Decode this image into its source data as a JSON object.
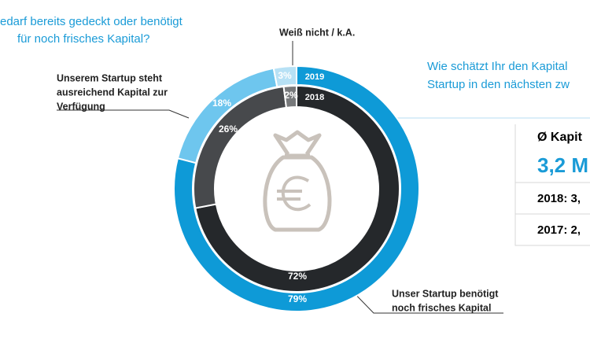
{
  "chart_data": {
    "type": "donut",
    "title": [
      "edarf bereits gedeckt oder benötigt",
      "für noch frisches Kapital?"
    ],
    "categories": [
      [
        "Unser Startup benötigt",
        "noch frisches Kapital"
      ],
      [
        "Unserem Startup steht",
        "ausreichend Kapital zur",
        "Verfügung"
      ],
      [
        "Weiß nicht / k.A."
      ]
    ],
    "series": [
      {
        "name": "2019",
        "colors": [
          "#0e9ad7",
          "#6ec6ee",
          "#b7e1f5"
        ],
        "values": [
          79,
          18,
          3
        ],
        "value_labels": [
          "79%",
          "18%",
          "3%"
        ]
      },
      {
        "name": "2018",
        "colors": [
          "#25282b",
          "#47494c",
          "#77797b"
        ],
        "values": [
          72,
          26,
          2
        ],
        "value_labels": [
          "72%",
          "26%",
          "2%"
        ]
      }
    ]
  },
  "side_panel": {
    "question": [
      "Wie schätzt Ihr den Kapital",
      "Startup in den nächsten zw"
    ],
    "heading": "Ø Kapit",
    "value": "3,2 M",
    "rows": [
      "2018: 3,",
      "2017: 2,"
    ]
  }
}
